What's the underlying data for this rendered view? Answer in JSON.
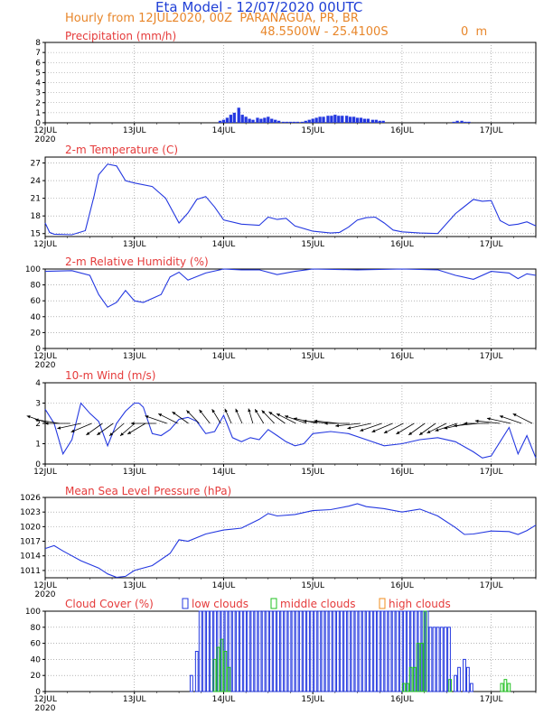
{
  "header": {
    "title": "Eta Model - 12/07/2020 00UTC",
    "subtitle": "Hourly from 12JUL2020, 00Z  PARANAGUA, PR, BR",
    "coords": "48.5500W - 25.4100S",
    "elevation": "0  m"
  },
  "colors": {
    "title": "#1f3fd6",
    "subtitle": "#e8862a",
    "panel_title": "#e53b3b",
    "series": "#2438e0",
    "middle": "#20c020",
    "high": "#f08c1e"
  },
  "x_axis": {
    "ticks": [
      "12JUL",
      "13JUL",
      "14JUL",
      "15JUL",
      "16JUL",
      "17JUL"
    ],
    "year": "2020",
    "range_days": [
      0,
      5.5
    ]
  },
  "chart_data": [
    {
      "type": "bar",
      "title": "Precipitation (mm/h)",
      "ylim": [
        0,
        8
      ],
      "yticks": [
        "0",
        "1",
        "2",
        "3",
        "4",
        "5",
        "6",
        "7",
        "8"
      ],
      "x_days": [
        1.96,
        2.0,
        2.04,
        2.08,
        2.12,
        2.17,
        2.21,
        2.25,
        2.29,
        2.33,
        2.38,
        2.42,
        2.46,
        2.5,
        2.54,
        2.58,
        2.62,
        2.67,
        2.71,
        2.75,
        2.79,
        2.83,
        2.88,
        2.92,
        2.96,
        3.0,
        3.04,
        3.08,
        3.12,
        3.17,
        3.21,
        3.25,
        3.29,
        3.33,
        3.38,
        3.42,
        3.46,
        3.5,
        3.54,
        3.58,
        3.62,
        3.67,
        3.71,
        3.75,
        3.79,
        4.58,
        4.62,
        4.67,
        4.71,
        4.75
      ],
      "values": [
        0.2,
        0.3,
        0.5,
        0.8,
        1.0,
        1.5,
        0.8,
        0.6,
        0.4,
        0.3,
        0.5,
        0.4,
        0.5,
        0.6,
        0.4,
        0.3,
        0.2,
        0.1,
        0.1,
        0.1,
        0.1,
        0.1,
        0.1,
        0.2,
        0.3,
        0.4,
        0.5,
        0.6,
        0.6,
        0.7,
        0.7,
        0.8,
        0.7,
        0.7,
        0.7,
        0.6,
        0.6,
        0.5,
        0.5,
        0.4,
        0.4,
        0.3,
        0.3,
        0.2,
        0.2,
        0.1,
        0.2,
        0.2,
        0.1,
        0.1
      ]
    },
    {
      "type": "line",
      "title": "2-m Temperature (C)",
      "ylim": [
        14.5,
        28
      ],
      "yticks": [
        "15",
        "18",
        "21",
        "24",
        "27"
      ],
      "x": [
        0,
        0.05,
        0.1,
        0.3,
        0.45,
        0.55,
        0.6,
        0.7,
        0.8,
        0.9,
        1.0,
        1.2,
        1.35,
        1.5,
        1.6,
        1.7,
        1.8,
        1.9,
        2.0,
        2.2,
        2.4,
        2.5,
        2.6,
        2.7,
        2.8,
        3.0,
        3.2,
        3.3,
        3.4,
        3.5,
        3.6,
        3.7,
        3.8,
        3.9,
        4.0,
        4.2,
        4.4,
        4.6,
        4.8,
        4.9,
        5.0,
        5.1,
        5.2,
        5.3,
        5.4,
        5.5
      ],
      "y": [
        16.8,
        15.2,
        14.9,
        14.8,
        15.5,
        21.5,
        25.0,
        26.8,
        26.5,
        24.0,
        23.6,
        23.0,
        21.0,
        16.8,
        18.5,
        20.8,
        21.3,
        19.5,
        17.3,
        16.6,
        16.4,
        17.8,
        17.4,
        17.6,
        16.3,
        15.4,
        15.1,
        15.2,
        16.1,
        17.3,
        17.7,
        17.8,
        16.8,
        15.6,
        15.3,
        15.1,
        15.0,
        18.4,
        20.8,
        20.5,
        20.6,
        17.2,
        16.4,
        16.6,
        17.0,
        16.3
      ]
    },
    {
      "type": "line",
      "title": "2-m Relative Humidity (%)",
      "ylim": [
        0,
        100
      ],
      "yticks": [
        "0",
        "20",
        "40",
        "60",
        "80",
        "100"
      ],
      "x": [
        0,
        0.3,
        0.5,
        0.6,
        0.7,
        0.8,
        0.9,
        1.0,
        1.1,
        1.3,
        1.4,
        1.5,
        1.6,
        1.8,
        2.0,
        2.2,
        2.4,
        2.6,
        2.8,
        3.0,
        3.5,
        4.0,
        4.4,
        4.6,
        4.8,
        5.0,
        5.2,
        5.3,
        5.4,
        5.5
      ],
      "y": [
        97,
        98,
        92,
        68,
        52,
        58,
        73,
        60,
        58,
        68,
        90,
        96,
        86,
        95,
        100,
        99,
        99,
        93,
        97,
        100,
        99,
        100,
        99,
        92,
        87,
        97,
        95,
        88,
        94,
        92
      ]
    },
    {
      "type": "line",
      "title": "10-m Wind (m/s)",
      "ylim": [
        0,
        4
      ],
      "yticks": [
        "0",
        "1",
        "2",
        "3",
        "4"
      ],
      "x": [
        0,
        0.1,
        0.2,
        0.3,
        0.4,
        0.5,
        0.6,
        0.7,
        0.8,
        0.9,
        1.0,
        1.05,
        1.1,
        1.2,
        1.3,
        1.4,
        1.5,
        1.6,
        1.7,
        1.8,
        1.9,
        2.0,
        2.1,
        2.2,
        2.3,
        2.4,
        2.5,
        2.6,
        2.7,
        2.8,
        2.9,
        3.0,
        3.2,
        3.4,
        3.6,
        3.8,
        4.0,
        4.2,
        4.4,
        4.6,
        4.8,
        4.9,
        5.0,
        5.2,
        5.3,
        5.4,
        5.5
      ],
      "y": [
        2.7,
        2.0,
        0.5,
        1.2,
        3.0,
        2.5,
        2.1,
        0.9,
        2.0,
        2.6,
        3.0,
        3.0,
        2.8,
        1.5,
        1.4,
        1.7,
        2.2,
        2.3,
        2.1,
        1.5,
        1.6,
        2.4,
        1.3,
        1.1,
        1.3,
        1.2,
        1.7,
        1.4,
        1.1,
        0.9,
        1.0,
        1.5,
        1.6,
        1.5,
        1.2,
        0.9,
        1.0,
        1.2,
        1.3,
        1.1,
        0.6,
        0.3,
        0.4,
        1.8,
        0.5,
        1.4,
        0.3
      ],
      "vectors_direction_deg": [
        300,
        285,
        270,
        250,
        235,
        220,
        220,
        215,
        215,
        225,
        270,
        300,
        310,
        320,
        330,
        335,
        340,
        345,
        345,
        350,
        340,
        330,
        320,
        310,
        300,
        290,
        280,
        280,
        270,
        260,
        250,
        240,
        235,
        230,
        225,
        220,
        220,
        230,
        240,
        250,
        260,
        270,
        280,
        290,
        300,
        310
      ],
      "vector_count": 46
    },
    {
      "type": "line",
      "title": "Mean Sea Level Pressure (hPa)",
      "ylim": [
        1009.5,
        1026
      ],
      "yticks": [
        "1011",
        "1014",
        "1017",
        "1020",
        "1023",
        "1026"
      ],
      "x": [
        0,
        0.1,
        0.2,
        0.4,
        0.6,
        0.7,
        0.8,
        0.9,
        1.0,
        1.2,
        1.4,
        1.5,
        1.6,
        1.8,
        2.0,
        2.2,
        2.4,
        2.5,
        2.6,
        2.8,
        3.0,
        3.2,
        3.4,
        3.5,
        3.6,
        3.8,
        4.0,
        4.2,
        4.4,
        4.6,
        4.7,
        4.8,
        5.0,
        5.2,
        5.3,
        5.4,
        5.5
      ],
      "y": [
        1015.5,
        1016.1,
        1015.0,
        1013.0,
        1011.5,
        1010.3,
        1009.6,
        1009.8,
        1011.0,
        1012.0,
        1014.5,
        1017.3,
        1017.0,
        1018.5,
        1019.3,
        1019.7,
        1021.5,
        1022.7,
        1022.2,
        1022.5,
        1023.3,
        1023.5,
        1024.2,
        1024.7,
        1024.1,
        1023.7,
        1023.0,
        1023.6,
        1022.2,
        1019.8,
        1018.4,
        1018.5,
        1019.1,
        1019.0,
        1018.4,
        1019.2,
        1020.3
      ]
    },
    {
      "type": "bar",
      "title": "Cloud Cover (%)",
      "legend": {
        "low": "low clouds",
        "middle": "middle clouds",
        "high": "high clouds"
      },
      "ylim": [
        0,
        100
      ],
      "yticks": [
        "0",
        "20",
        "40",
        "60",
        "80",
        "100"
      ],
      "low_bars": [
        {
          "from": 1.62,
          "to": 1.68,
          "value": 20
        },
        {
          "from": 1.68,
          "to": 1.72,
          "value": 50
        },
        {
          "from": 1.72,
          "to": 4.3,
          "value": 100
        },
        {
          "from": 4.3,
          "to": 4.54,
          "value": 80
        },
        {
          "from": 4.58,
          "to": 4.62,
          "value": 20
        },
        {
          "from": 4.62,
          "to": 4.68,
          "value": 30
        },
        {
          "from": 4.68,
          "to": 4.72,
          "value": 40
        },
        {
          "from": 4.72,
          "to": 4.76,
          "value": 30
        },
        {
          "from": 4.76,
          "to": 4.8,
          "value": 10
        }
      ],
      "middle_bars": [
        {
          "from": 1.88,
          "to": 1.92,
          "value": 40
        },
        {
          "from": 1.92,
          "to": 1.96,
          "value": 55
        },
        {
          "from": 1.96,
          "to": 2.0,
          "value": 65
        },
        {
          "from": 2.0,
          "to": 2.04,
          "value": 50
        },
        {
          "from": 2.04,
          "to": 2.08,
          "value": 30
        },
        {
          "from": 4.0,
          "to": 4.08,
          "value": 10
        },
        {
          "from": 4.08,
          "to": 4.16,
          "value": 30
        },
        {
          "from": 4.16,
          "to": 4.24,
          "value": 60
        },
        {
          "from": 4.24,
          "to": 4.29,
          "value": 100
        },
        {
          "from": 4.52,
          "to": 4.56,
          "value": 15
        },
        {
          "from": 5.1,
          "to": 5.14,
          "value": 10
        },
        {
          "from": 5.14,
          "to": 5.18,
          "value": 15
        },
        {
          "from": 5.18,
          "to": 5.22,
          "value": 10
        }
      ],
      "high_bars": []
    }
  ]
}
